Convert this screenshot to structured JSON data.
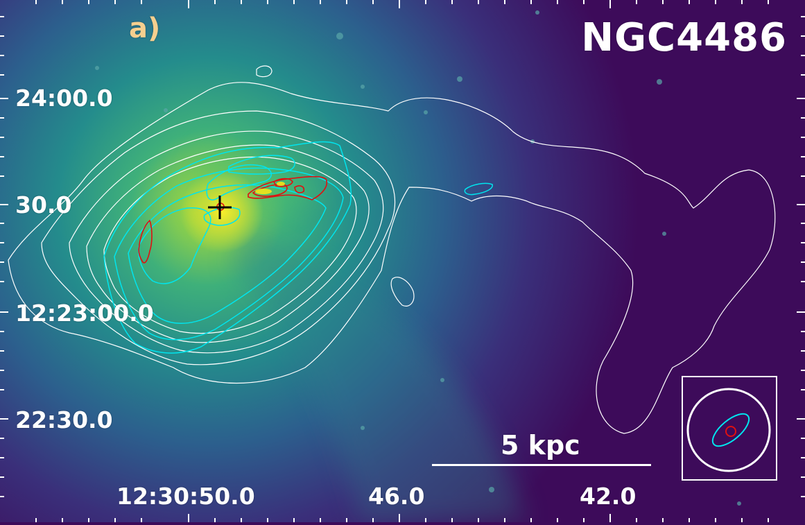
{
  "panel_label": "a)",
  "object_name": "NGC4486",
  "scale_bar_label": "5 kpc",
  "dec_ticks": [
    "24:00.0",
    "30.0",
    "12:23:00.0",
    "22:30.0"
  ],
  "ra_ticks": [
    "12:30:50.0",
    "46.0",
    "42.0"
  ],
  "colors": {
    "background": "#3d0b5a",
    "halo": "#2b8a8c",
    "core": "#f2e61a",
    "contour_outer": "#ffffff",
    "contour_mid": "#00e5ee",
    "contour_inner": "#e01010",
    "panel_label": "#f5cf8f"
  },
  "icons": {
    "nucleus_marker": "cross-marker-icon"
  }
}
